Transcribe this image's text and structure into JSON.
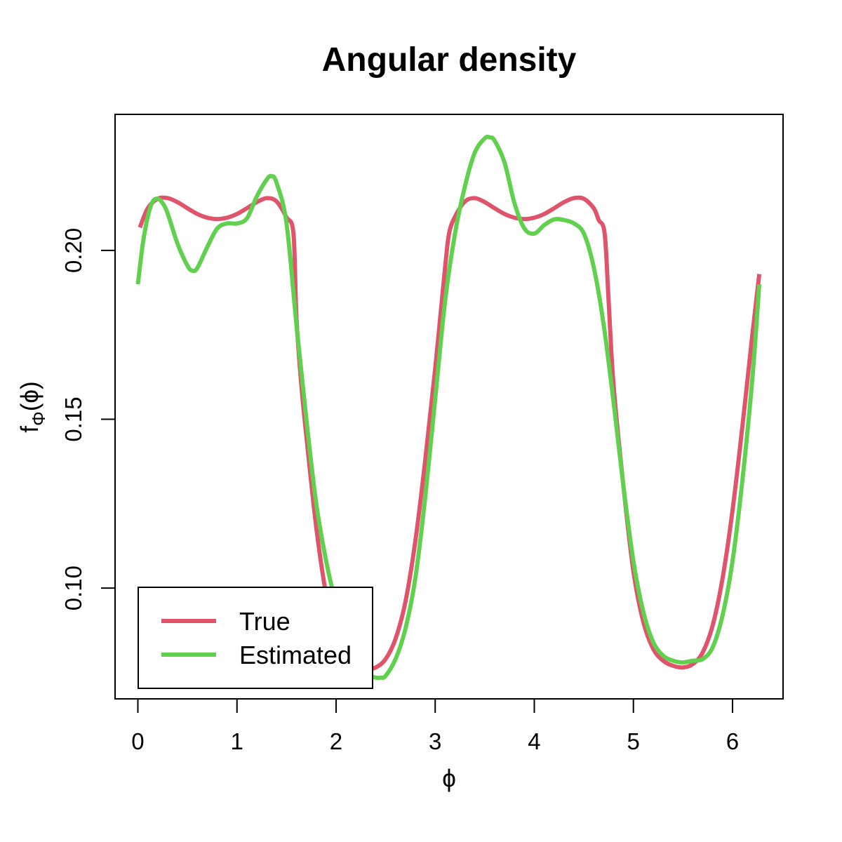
{
  "chart_data": {
    "type": "line",
    "title": "Angular density",
    "xlabel": "ϕ",
    "ylabel": {
      "main": "f",
      "sub": "Φ",
      "arg": "(ϕ)"
    },
    "xlim": [
      -0.23,
      6.51
    ],
    "ylim": [
      0.0672,
      0.2403
    ],
    "x_ticks": [
      0,
      1,
      2,
      3,
      4,
      5,
      6
    ],
    "x_tick_labels": [
      "0",
      "1",
      "2",
      "3",
      "4",
      "5",
      "6"
    ],
    "y_ticks": [
      0.1,
      0.15,
      0.2
    ],
    "y_tick_labels": [
      "0.10",
      "0.15",
      "0.20"
    ],
    "grid": false,
    "legend_position": "bottom-left",
    "series": [
      {
        "name": "True",
        "color": "#DF536B",
        "x": [
          0.02,
          0.1,
          0.2,
          0.3,
          0.4,
          0.5,
          0.6,
          0.7,
          0.8,
          0.9,
          1.0,
          1.1,
          1.2,
          1.3,
          1.4,
          1.5,
          1.57,
          1.6,
          1.65,
          1.7,
          1.8,
          1.9,
          2.0,
          2.1,
          2.2,
          2.3,
          2.4,
          2.5,
          2.6,
          2.7,
          2.8,
          2.9,
          3.0,
          3.1,
          3.14,
          3.2,
          3.3,
          3.4,
          3.5,
          3.6,
          3.7,
          3.8,
          3.9,
          4.0,
          4.1,
          4.2,
          4.3,
          4.4,
          4.5,
          4.6,
          4.65,
          4.71,
          4.75,
          4.8,
          4.9,
          5.0,
          5.1,
          5.2,
          5.3,
          5.4,
          5.5,
          5.6,
          5.7,
          5.8,
          5.9,
          6.0,
          6.1,
          6.2,
          6.27
        ],
        "values": [
          0.2068,
          0.2125,
          0.2153,
          0.2155,
          0.2143,
          0.2125,
          0.2108,
          0.2097,
          0.2093,
          0.2097,
          0.2108,
          0.2125,
          0.2143,
          0.2155,
          0.2145,
          0.2098,
          0.205,
          0.18,
          0.16,
          0.145,
          0.118,
          0.098,
          0.085,
          0.079,
          0.0765,
          0.076,
          0.0765,
          0.079,
          0.085,
          0.096,
          0.114,
          0.138,
          0.165,
          0.195,
          0.205,
          0.21,
          0.2145,
          0.2155,
          0.2143,
          0.2125,
          0.2108,
          0.2097,
          0.2093,
          0.2097,
          0.2108,
          0.2125,
          0.2143,
          0.2155,
          0.2153,
          0.2125,
          0.209,
          0.205,
          0.185,
          0.16,
          0.13,
          0.105,
          0.09,
          0.082,
          0.0785,
          0.077,
          0.0765,
          0.0775,
          0.081,
          0.089,
          0.103,
          0.123,
          0.148,
          0.175,
          0.193
        ]
      },
      {
        "name": "Estimated",
        "color": "#61D04F",
        "x": [
          0.0,
          0.05,
          0.1,
          0.15,
          0.2,
          0.25,
          0.3,
          0.4,
          0.5,
          0.55,
          0.6,
          0.7,
          0.8,
          0.9,
          1.0,
          1.1,
          1.2,
          1.3,
          1.35,
          1.4,
          1.5,
          1.6,
          1.7,
          1.8,
          1.9,
          2.0,
          2.1,
          2.2,
          2.3,
          2.4,
          2.45,
          2.5,
          2.6,
          2.7,
          2.8,
          2.9,
          3.0,
          3.1,
          3.2,
          3.3,
          3.4,
          3.5,
          3.55,
          3.6,
          3.7,
          3.8,
          3.9,
          4.0,
          4.1,
          4.2,
          4.3,
          4.4,
          4.5,
          4.6,
          4.7,
          4.8,
          4.9,
          5.0,
          5.1,
          5.2,
          5.3,
          5.4,
          5.5,
          5.6,
          5.7,
          5.8,
          5.9,
          6.0,
          6.1,
          6.2,
          6.27
        ],
        "values": [
          0.19,
          0.202,
          0.21,
          0.2145,
          0.2153,
          0.214,
          0.211,
          0.202,
          0.1955,
          0.194,
          0.1948,
          0.201,
          0.2065,
          0.208,
          0.208,
          0.2095,
          0.216,
          0.221,
          0.222,
          0.22,
          0.208,
          0.178,
          0.15,
          0.125,
          0.108,
          0.095,
          0.084,
          0.0775,
          0.0745,
          0.0735,
          0.0735,
          0.074,
          0.079,
          0.088,
          0.103,
          0.127,
          0.156,
          0.185,
          0.205,
          0.219,
          0.229,
          0.2332,
          0.2335,
          0.2325,
          0.226,
          0.214,
          0.2065,
          0.205,
          0.2075,
          0.2092,
          0.209,
          0.208,
          0.205,
          0.195,
          0.178,
          0.155,
          0.13,
          0.108,
          0.093,
          0.084,
          0.08,
          0.0785,
          0.078,
          0.0785,
          0.079,
          0.0825,
          0.092,
          0.108,
          0.132,
          0.162,
          0.19
        ]
      }
    ]
  }
}
